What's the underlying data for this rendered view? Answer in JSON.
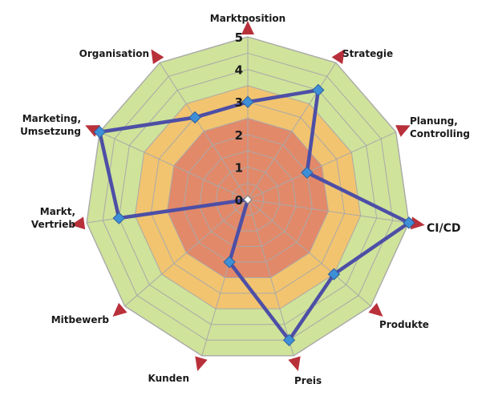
{
  "chart_data": {
    "type": "radar",
    "title": "",
    "categories": [
      [
        "Marktposition"
      ],
      [
        "Strategie"
      ],
      [
        "Planung,",
        "Controlling"
      ],
      [
        "CI/CD"
      ],
      [
        "Produkte"
      ],
      [
        "Preis"
      ],
      [
        "Kunden"
      ],
      [
        "Mitbewerb"
      ],
      [
        "Markt,",
        "Vertrieb"
      ],
      [
        "Marketing,",
        "Umsetzung"
      ],
      [
        "Organisation"
      ]
    ],
    "series": [
      {
        "values": [
          3,
          4,
          2,
          5,
          3.5,
          4.5,
          2,
          0,
          4,
          5,
          3
        ]
      }
    ],
    "range": [
      0,
      5
    ],
    "ticks": [
      0,
      1,
      2,
      3,
      4,
      5
    ],
    "zones": [
      {
        "from": 0,
        "to": 2.5,
        "color": "#e2896a"
      },
      {
        "from": 2.5,
        "to": 3.5,
        "color": "#f2c46f"
      },
      {
        "from": 3.5,
        "to": 5,
        "color": "#cfe39a"
      }
    ],
    "grid_color": "#a9a9a9",
    "series_color": "#4d4fa6",
    "marker_color": "#3f8fd6",
    "axis_marker_color": "#b8303a"
  }
}
